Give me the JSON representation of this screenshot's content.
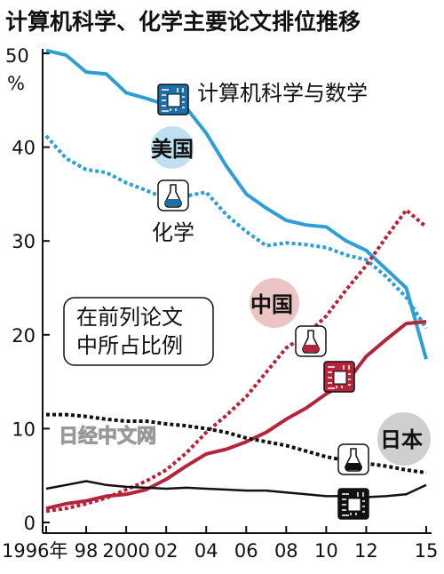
{
  "chart_data": {
    "type": "line",
    "title": "计算机科学、化学主要论文排位推移",
    "y_unit": "%",
    "y_unit_top": "50",
    "ylim": [
      0,
      50
    ],
    "xlim": [
      1996,
      2015
    ],
    "y_ticks": [
      0,
      10,
      20,
      30,
      40,
      50
    ],
    "y_tick_labels": [
      "0",
      "10",
      "20",
      "30",
      "40",
      ""
    ],
    "x_ticks": [
      1996,
      1998,
      2000,
      2002,
      2004,
      2006,
      2008,
      2010,
      2012,
      2015
    ],
    "x_tick_labels": [
      "1996年",
      "98",
      "2000",
      "02",
      "04",
      "06",
      "08",
      "10",
      "12",
      "15"
    ],
    "note_lines": [
      "在前列论文",
      "中所占比例"
    ],
    "country_labels": {
      "usa": "美国",
      "china": "中国",
      "japan": "日本"
    },
    "field_labels": {
      "cs": "计算机科学与数学",
      "chem": "化学"
    },
    "watermark": "日经中文网",
    "series": [
      {
        "key": "usa_cs",
        "style": "solid",
        "color": "#2e9fd4",
        "x": [
          1996,
          1997,
          1998,
          1999,
          2000,
          2001,
          2002,
          2003,
          2004,
          2005,
          2006,
          2007,
          2008,
          2009,
          2010,
          2011,
          2012,
          2013,
          2014,
          2015
        ],
        "values": [
          50.3,
          49.8,
          48.0,
          47.8,
          45.8,
          45.2,
          44.5,
          44.2,
          41.5,
          38.0,
          35.0,
          33.5,
          32.2,
          31.7,
          31.5,
          30.0,
          29.0,
          27.0,
          25.0,
          17.4
        ]
      },
      {
        "key": "usa_chem",
        "style": "dotted",
        "color": "#2e9fd4",
        "x": [
          1996,
          1997,
          1998,
          1999,
          2000,
          2001,
          2002,
          2003,
          2004,
          2005,
          2006,
          2007,
          2008,
          2009,
          2010,
          2011,
          2012,
          2013,
          2014,
          2015
        ],
        "values": [
          41.2,
          38.8,
          37.6,
          37.3,
          36.2,
          35.4,
          34.5,
          34.8,
          35.2,
          32.8,
          31.0,
          29.5,
          29.8,
          29.6,
          29.3,
          28.5,
          28.0,
          26.2,
          24.0,
          20.7
        ]
      },
      {
        "key": "china_cs",
        "style": "solid",
        "color": "#b5253a",
        "x": [
          1996,
          1997,
          1998,
          1999,
          2000,
          2001,
          2002,
          2003,
          2004,
          2005,
          2006,
          2007,
          2008,
          2009,
          2010,
          2011,
          2012,
          2013,
          2014,
          2015
        ],
        "values": [
          1.5,
          2.0,
          2.3,
          2.8,
          3.0,
          3.5,
          4.6,
          6.0,
          7.3,
          7.8,
          8.6,
          9.6,
          11.0,
          12.2,
          13.7,
          14.9,
          17.7,
          19.5,
          21.2,
          21.4
        ]
      },
      {
        "key": "china_chem",
        "style": "dotted",
        "color": "#b5253a",
        "x": [
          1996,
          1997,
          1998,
          1999,
          2000,
          2001,
          2002,
          2003,
          2004,
          2005,
          2006,
          2007,
          2008,
          2009,
          2010,
          2011,
          2012,
          2013,
          2014,
          2015
        ],
        "values": [
          1.2,
          1.5,
          2.0,
          2.6,
          3.5,
          4.4,
          5.6,
          7.4,
          9.6,
          11.4,
          13.4,
          16.0,
          18.6,
          20.0,
          22.0,
          24.8,
          27.4,
          30.4,
          33.3,
          31.5
        ]
      },
      {
        "key": "japan_cs",
        "style": "solid",
        "color": "#111111",
        "x": [
          1996,
          1997,
          1998,
          1999,
          2000,
          2001,
          2002,
          2003,
          2004,
          2005,
          2006,
          2007,
          2008,
          2009,
          2010,
          2011,
          2012,
          2013,
          2014,
          2015
        ],
        "values": [
          3.6,
          4.0,
          4.4,
          4.0,
          3.8,
          3.7,
          3.6,
          3.7,
          3.6,
          3.5,
          3.4,
          3.4,
          3.2,
          3.0,
          2.8,
          2.8,
          2.7,
          2.8,
          3.0,
          4.0
        ]
      },
      {
        "key": "japan_chem",
        "style": "dotted",
        "color": "#111111",
        "x": [
          1996,
          1997,
          1998,
          1999,
          2000,
          2001,
          2002,
          2003,
          2004,
          2005,
          2006,
          2007,
          2008,
          2009,
          2010,
          2011,
          2012,
          2013,
          2014,
          2015
        ],
        "values": [
          11.5,
          11.5,
          11.3,
          11.0,
          10.8,
          10.8,
          10.5,
          10.3,
          10.0,
          9.6,
          9.0,
          8.6,
          8.2,
          7.6,
          7.0,
          6.6,
          6.3,
          6.0,
          5.6,
          5.3
        ]
      }
    ],
    "colors": {
      "usa": "#2e9fd4",
      "china": "#b5253a",
      "japan": "#111111",
      "usa_badge": "#bfe0f0",
      "china_badge": "#ecc4c4",
      "japan_badge": "#cfcfcf",
      "icon_blue": "#1d6fa8",
      "icon_red": "#b5253a"
    },
    "grid": false,
    "legend": "inline"
  }
}
